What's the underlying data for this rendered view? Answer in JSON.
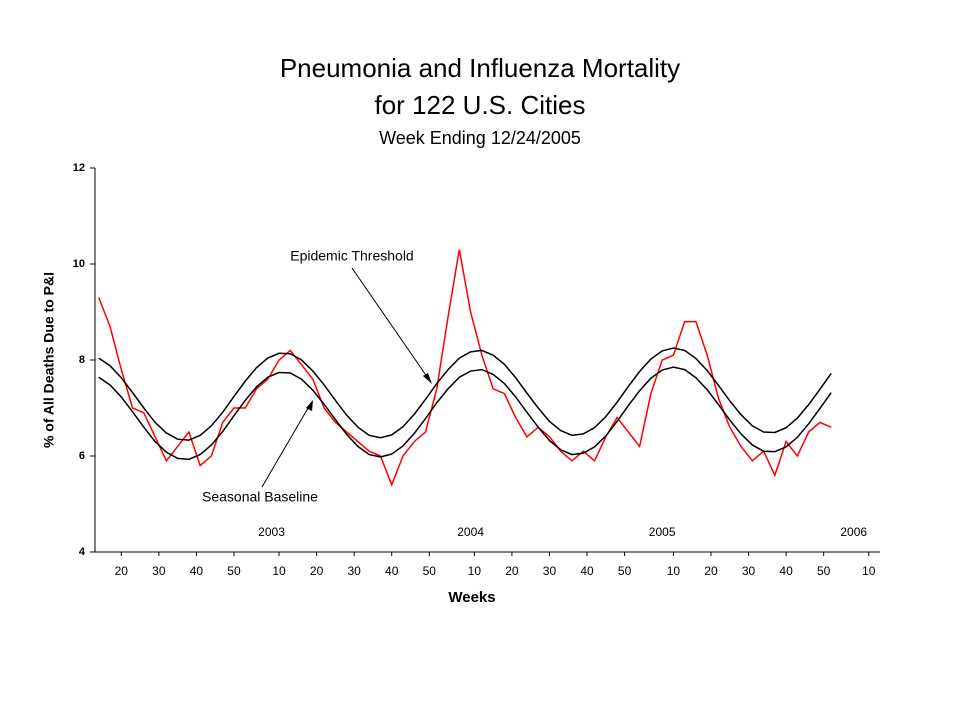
{
  "chart_data": {
    "type": "line",
    "title": [
      "Pneumonia and Influenza Mortality",
      "for 122 U.S. Cities"
    ],
    "subtitle": "Week Ending 12/24/2005",
    "x_label": "Weeks",
    "y_label": "% of All Deaths Due to P&I",
    "xlim": [
      13,
      222
    ],
    "ylim": [
      4,
      12
    ],
    "yticks": [
      4,
      6,
      8,
      10,
      12
    ],
    "xticks": [
      20,
      30,
      40,
      50,
      {
        "value": 62,
        "label": "10"
      },
      {
        "value": 72,
        "label": "20"
      },
      {
        "value": 82,
        "label": "30"
      },
      {
        "value": 92,
        "label": "40"
      },
      {
        "value": 102,
        "label": "50"
      },
      {
        "value": 114,
        "label": "10"
      },
      {
        "value": 124,
        "label": "20"
      },
      {
        "value": 134,
        "label": "30"
      },
      {
        "value": 144,
        "label": "40"
      },
      {
        "value": 154,
        "label": "50"
      },
      {
        "value": 167,
        "label": "10"
      },
      {
        "value": 177,
        "label": "20"
      },
      {
        "value": 187,
        "label": "30"
      },
      {
        "value": 197,
        "label": "40"
      },
      {
        "value": 207,
        "label": "50"
      },
      {
        "value": 219,
        "label": "10"
      }
    ],
    "year_labels": [
      {
        "value": 60,
        "label": "2003"
      },
      {
        "value": 113,
        "label": "2004"
      },
      {
        "value": 164,
        "label": "2005"
      },
      {
        "value": 215,
        "label": "2006"
      }
    ],
    "grid": false,
    "x": [
      14,
      17,
      20,
      23,
      26,
      29,
      32,
      35,
      38,
      41,
      44,
      47,
      50,
      53,
      56,
      59,
      62,
      65,
      68,
      71,
      74,
      77,
      80,
      83,
      86,
      89,
      92,
      95,
      98,
      101,
      104,
      107,
      110,
      113,
      116,
      119,
      122,
      125,
      128,
      131,
      134,
      137,
      140,
      143,
      146,
      149,
      152,
      155,
      158,
      161,
      164,
      167,
      170,
      173,
      176,
      179,
      182,
      185,
      188,
      191,
      194,
      197,
      200,
      203,
      206,
      209
    ],
    "series": [
      {
        "color": "#ff0000",
        "values": [
          9.3,
          8.7,
          7.8,
          7.0,
          6.9,
          6.4,
          5.9,
          6.2,
          6.5,
          5.8,
          6.0,
          6.7,
          7.0,
          7.0,
          7.4,
          7.6,
          8.0,
          8.2,
          7.9,
          7.6,
          7.0,
          6.7,
          6.5,
          6.3,
          6.1,
          6.0,
          5.4,
          6.0,
          6.3,
          6.5,
          7.4,
          8.9,
          10.3,
          9.0,
          8.1,
          7.4,
          7.3,
          6.8,
          6.4,
          6.6,
          6.4,
          6.1,
          5.9,
          6.1,
          5.9,
          6.4,
          6.8,
          6.5,
          6.2,
          7.3,
          8.0,
          8.1,
          8.8,
          8.8,
          8.1,
          7.2,
          6.6,
          6.2,
          5.9,
          6.1,
          5.6,
          6.3,
          6.0,
          6.5,
          6.7,
          6.6
        ]
      },
      {
        "name": "Epidemic Threshold",
        "color": "#000000",
        "values": [
          8.04,
          7.88,
          7.63,
          7.32,
          7.0,
          6.7,
          6.48,
          6.35,
          6.33,
          6.43,
          6.63,
          6.91,
          7.24,
          7.56,
          7.84,
          8.04,
          8.14,
          8.13,
          8.0,
          7.77,
          7.48,
          7.16,
          6.85,
          6.6,
          6.43,
          6.38,
          6.44,
          6.61,
          6.87,
          7.18,
          7.51,
          7.8,
          8.04,
          8.17,
          8.2,
          8.1,
          7.91,
          7.63,
          7.31,
          7.0,
          6.72,
          6.53,
          6.43,
          6.46,
          6.59,
          6.82,
          7.12,
          7.45,
          7.76,
          8.02,
          8.19,
          8.25,
          8.2,
          8.03,
          7.78,
          7.47,
          7.15,
          6.86,
          6.63,
          6.5,
          6.49,
          6.59,
          6.79,
          7.07,
          7.39,
          7.72
        ]
      },
      {
        "name": "Seasonal Baseline",
        "color": "#000000",
        "values": [
          7.64,
          7.48,
          7.23,
          6.92,
          6.6,
          6.3,
          6.08,
          5.95,
          5.93,
          6.03,
          6.23,
          6.51,
          6.84,
          7.16,
          7.44,
          7.64,
          7.74,
          7.73,
          7.6,
          7.37,
          7.08,
          6.76,
          6.45,
          6.2,
          6.03,
          5.98,
          6.04,
          6.21,
          6.47,
          6.78,
          7.11,
          7.4,
          7.64,
          7.77,
          7.8,
          7.7,
          7.51,
          7.23,
          6.91,
          6.6,
          6.32,
          6.13,
          6.03,
          6.06,
          6.19,
          6.42,
          6.72,
          7.05,
          7.36,
          7.62,
          7.79,
          7.85,
          7.8,
          7.63,
          7.38,
          7.07,
          6.75,
          6.46,
          6.23,
          6.1,
          6.09,
          6.19,
          6.39,
          6.67,
          6.99,
          7.32
        ]
      }
    ]
  }
}
